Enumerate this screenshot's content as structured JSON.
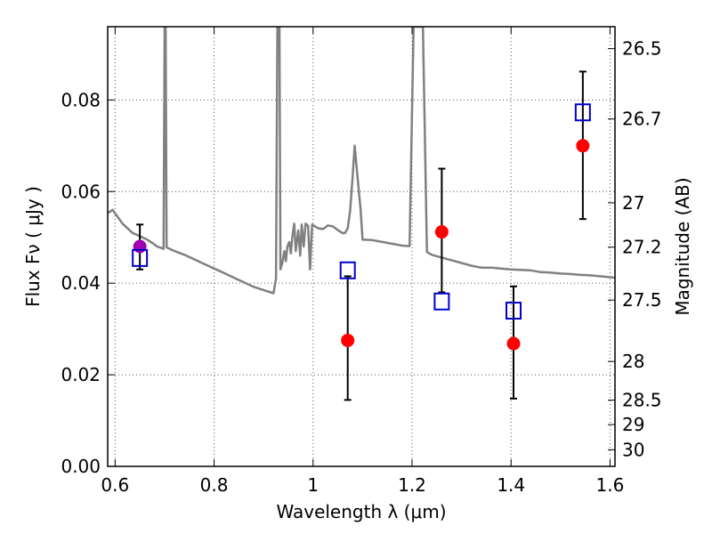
{
  "chart_data": {
    "type": "scatter",
    "title": "",
    "xlabel": "Wavelength  λ (μm)",
    "ylabel": "Flux  Fν  ( μJy )",
    "ylabel_right": "Magnitude (AB)",
    "xlim": [
      0.585,
      1.61
    ],
    "ylim": [
      0.0,
      0.096
    ],
    "grid": true,
    "x_ticks": [
      0.6,
      0.8,
      1.0,
      1.2,
      1.4,
      1.6
    ],
    "x_tick_labels": [
      "0.6",
      "0.8",
      "1",
      "1.2",
      "1.4",
      "1.6"
    ],
    "y_ticks": [
      0.0,
      0.02,
      0.04,
      0.06,
      0.08
    ],
    "y_tick_labels": [
      "0.00",
      "0.02",
      "0.04",
      "0.06",
      "0.08"
    ],
    "mag_tick_labels": [
      "26.5",
      "26.7",
      "27",
      "27.2",
      "27.5",
      "28",
      "28.5",
      "29",
      "30"
    ],
    "colors": {
      "model": "#808080",
      "observed": "#ff0000",
      "model_points": "#0000cc",
      "highlight": "#a000b0",
      "errorbar": "#000000",
      "grid": "#555555"
    },
    "series": [
      {
        "name": "model spectrum",
        "kind": "line",
        "points": [
          [
            0.585,
            0.0553
          ],
          [
            0.595,
            0.056
          ],
          [
            0.605,
            0.0545
          ],
          [
            0.615,
            0.053
          ],
          [
            0.625,
            0.052
          ],
          [
            0.635,
            0.051
          ],
          [
            0.645,
            0.0505
          ],
          [
            0.655,
            0.05
          ],
          [
            0.665,
            0.0495
          ],
          [
            0.675,
            0.0488
          ],
          [
            0.685,
            0.048
          ],
          [
            0.698,
            0.0475
          ],
          [
            0.7,
            0.096
          ],
          [
            0.702,
            0.096
          ],
          [
            0.704,
            0.0478
          ],
          [
            0.72,
            0.047
          ],
          [
            0.74,
            0.0462
          ],
          [
            0.76,
            0.0452
          ],
          [
            0.78,
            0.0442
          ],
          [
            0.8,
            0.0432
          ],
          [
            0.82,
            0.0422
          ],
          [
            0.84,
            0.0412
          ],
          [
            0.86,
            0.0402
          ],
          [
            0.88,
            0.0392
          ],
          [
            0.9,
            0.0385
          ],
          [
            0.92,
            0.0378
          ],
          [
            0.925,
            0.041
          ],
          [
            0.928,
            0.096
          ],
          [
            0.932,
            0.096
          ],
          [
            0.934,
            0.043
          ],
          [
            0.938,
            0.0445
          ],
          [
            0.942,
            0.047
          ],
          [
            0.945,
            0.0448
          ],
          [
            0.948,
            0.048
          ],
          [
            0.952,
            0.049
          ],
          [
            0.955,
            0.0465
          ],
          [
            0.958,
            0.05
          ],
          [
            0.962,
            0.053
          ],
          [
            0.965,
            0.047
          ],
          [
            0.97,
            0.0515
          ],
          [
            0.974,
            0.046
          ],
          [
            0.977,
            0.0528
          ],
          [
            0.981,
            0.048
          ],
          [
            0.985,
            0.053
          ],
          [
            0.99,
            0.0525
          ],
          [
            0.994,
            0.043
          ],
          [
            0.998,
            0.0528
          ],
          [
            1.01,
            0.052
          ],
          [
            1.02,
            0.0518
          ],
          [
            1.03,
            0.0526
          ],
          [
            1.04,
            0.0524
          ],
          [
            1.05,
            0.0516
          ],
          [
            1.06,
            0.0509
          ],
          [
            1.065,
            0.051
          ],
          [
            1.07,
            0.052
          ],
          [
            1.075,
            0.056
          ],
          [
            1.08,
            0.0635
          ],
          [
            1.084,
            0.07
          ],
          [
            1.09,
            0.063
          ],
          [
            1.096,
            0.056
          ],
          [
            1.1,
            0.0495
          ],
          [
            1.12,
            0.0494
          ],
          [
            1.14,
            0.049
          ],
          [
            1.16,
            0.0486
          ],
          [
            1.18,
            0.0482
          ],
          [
            1.195,
            0.0481
          ],
          [
            1.203,
            0.096
          ],
          [
            1.222,
            0.096
          ],
          [
            1.23,
            0.0468
          ],
          [
            1.24,
            0.0462
          ],
          [
            1.26,
            0.0456
          ],
          [
            1.28,
            0.045
          ],
          [
            1.3,
            0.0444
          ],
          [
            1.32,
            0.0438
          ],
          [
            1.34,
            0.0434
          ],
          [
            1.36,
            0.0434
          ],
          [
            1.38,
            0.0432
          ],
          [
            1.4,
            0.043
          ],
          [
            1.42,
            0.0429
          ],
          [
            1.44,
            0.0428
          ],
          [
            1.46,
            0.0424
          ],
          [
            1.48,
            0.0423
          ],
          [
            1.5,
            0.0421
          ],
          [
            1.52,
            0.042
          ],
          [
            1.54,
            0.0418
          ],
          [
            1.56,
            0.0417
          ],
          [
            1.58,
            0.0415
          ],
          [
            1.6,
            0.0413
          ],
          [
            1.61,
            0.0412
          ]
        ]
      },
      {
        "name": "observed photometry",
        "kind": "points",
        "marker": "circle",
        "points": [
          {
            "x": 1.07,
            "y": 0.0275,
            "yerr_low": 0.0145,
            "yerr_high": 0.0415
          },
          {
            "x": 1.26,
            "y": 0.0512,
            "yerr_low": 0.038,
            "yerr_high": 0.065
          },
          {
            "x": 1.405,
            "y": 0.0268,
            "yerr_low": 0.0148,
            "yerr_high": 0.0393
          },
          {
            "x": 1.545,
            "y": 0.07,
            "yerr_low": 0.054,
            "yerr_high": 0.0862
          }
        ]
      },
      {
        "name": "observed photometry (optical)",
        "kind": "points",
        "marker": "circle",
        "points": [
          {
            "x": 0.65,
            "y": 0.048,
            "yerr_low": 0.043,
            "yerr_high": 0.0528
          }
        ]
      },
      {
        "name": "model photometry",
        "kind": "points",
        "marker": "open-square",
        "points": [
          {
            "x": 0.65,
            "y": 0.0455
          },
          {
            "x": 1.07,
            "y": 0.0428
          },
          {
            "x": 1.26,
            "y": 0.036
          },
          {
            "x": 1.405,
            "y": 0.034
          },
          {
            "x": 1.545,
            "y": 0.0773
          }
        ]
      }
    ]
  }
}
